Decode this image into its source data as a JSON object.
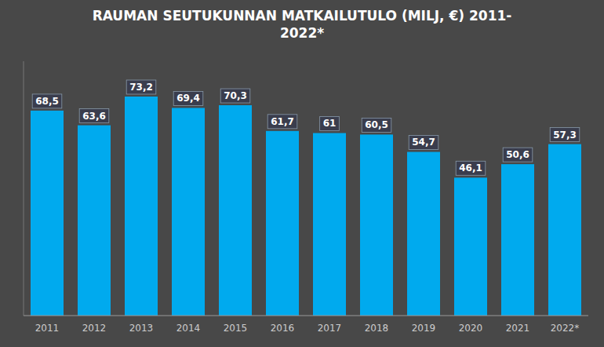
{
  "chart_data": {
    "type": "bar",
    "title": "RAUMAN SEUTUKUNNAN MATKAILUTULO (MILJ, €) 2011-\n2022*",
    "categories": [
      "2011",
      "2012",
      "2013",
      "2014",
      "2015",
      "2016",
      "2017",
      "2018",
      "2019",
      "2020",
      "2021",
      "2022*"
    ],
    "values": [
      68.5,
      63.6,
      73.2,
      69.4,
      70.3,
      61.7,
      61,
      60.5,
      54.7,
      46.1,
      50.6,
      57.3
    ],
    "value_labels": [
      "68,5",
      "63,6",
      "73,2",
      "69,4",
      "70,3",
      "61,7",
      "61",
      "60,5",
      "54,7",
      "46,1",
      "50,6",
      "57,3"
    ],
    "color": "#00AAEE",
    "ylim": [
      0,
      85
    ],
    "data_labels": true,
    "tick_labels": "x",
    "grid": false
  }
}
